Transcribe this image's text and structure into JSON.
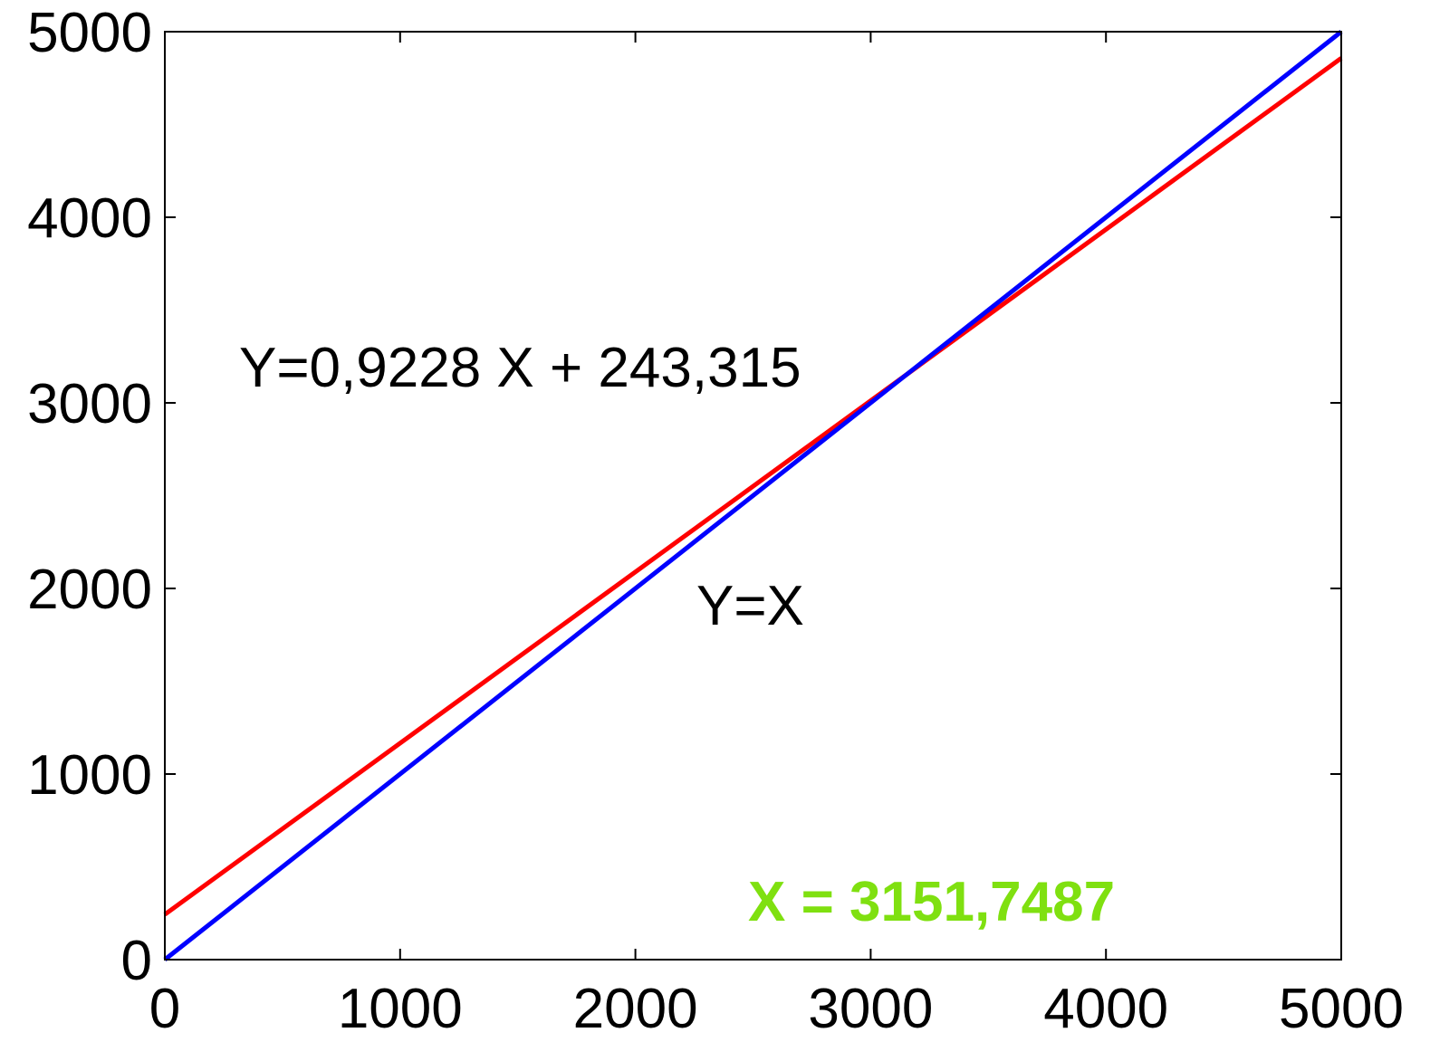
{
  "chart_data": {
    "type": "line",
    "x_ticks": [
      "0",
      "1000",
      "2000",
      "3000",
      "4000",
      "5000"
    ],
    "y_ticks": [
      "0",
      "1000",
      "2000",
      "3000",
      "4000",
      "5000"
    ],
    "xlim": [
      0,
      5000
    ],
    "ylim": [
      0,
      5000
    ],
    "grid": false,
    "series": [
      {
        "color": "#ff0000",
        "x": [
          0,
          5000
        ],
        "y": [
          243.315,
          4857.315
        ]
      },
      {
        "color": "#0000ff",
        "x": [
          0,
          5000
        ],
        "y": [
          0,
          5000
        ]
      }
    ],
    "annotations": {
      "fit_equation": "Y=0,9228 X + 243,315",
      "identity_label": "Y=X",
      "intersection": "X = 3151,7487"
    },
    "annotation_colors": {
      "intersection": "#7fe010"
    }
  }
}
